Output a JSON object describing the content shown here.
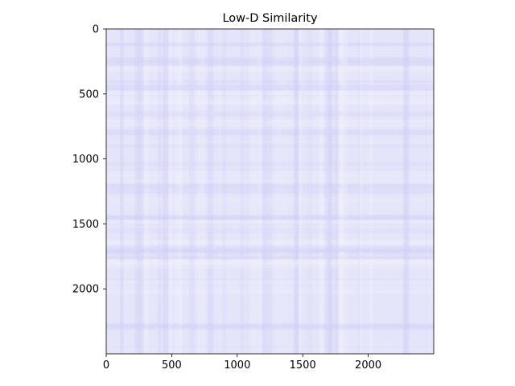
{
  "chart_data": {
    "type": "heatmap",
    "title": "Low-D Similarity",
    "xlabel": "",
    "ylabel": "",
    "matrix_size": 2500,
    "xlim": [
      0,
      2500
    ],
    "ylim": [
      2500,
      0
    ],
    "x_ticks": [
      0,
      500,
      1000,
      1500,
      2000
    ],
    "y_ticks": [
      0,
      500,
      1000,
      1500,
      2000
    ],
    "x_tick_labels": [
      "0",
      "500",
      "1000",
      "1500",
      "2000"
    ],
    "y_tick_labels": [
      "0",
      "500",
      "1000",
      "1500",
      "2000"
    ],
    "colormap": "bwr",
    "base_color": "#e4e4fa",
    "low_color": "#c9c9f6",
    "high_color": "#f2f2fb",
    "grid": false,
    "colorbar": false
  }
}
